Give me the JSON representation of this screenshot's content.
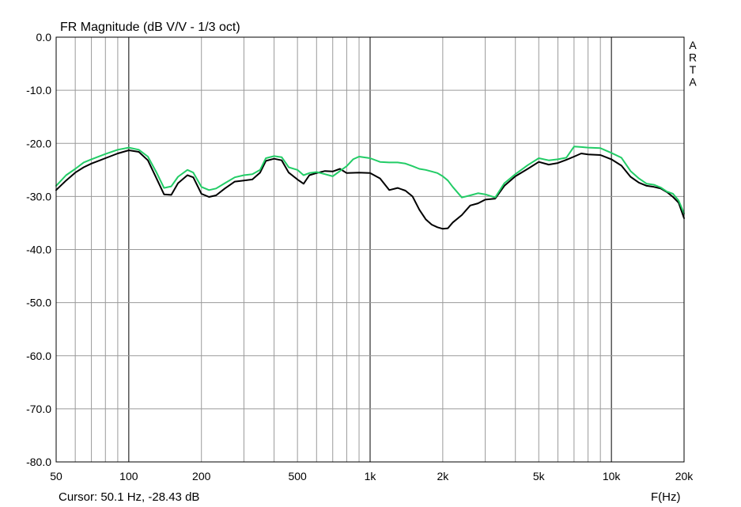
{
  "chart_data": {
    "type": "line",
    "title": "FR Magnitude (dB V/V - 1/3 oct)",
    "side_label": [
      "A",
      "R",
      "T",
      "A"
    ],
    "xlabel": "F(Hz)",
    "ylabel": "",
    "x_scale": "log",
    "xlim": [
      50,
      20000
    ],
    "ylim": [
      -80,
      0
    ],
    "grid": true,
    "x_ticks": [
      {
        "value": 50,
        "label": "50"
      },
      {
        "value": 100,
        "label": "100"
      },
      {
        "value": 200,
        "label": "200"
      },
      {
        "value": 500,
        "label": "500"
      },
      {
        "value": 1000,
        "label": "1k"
      },
      {
        "value": 2000,
        "label": "2k"
      },
      {
        "value": 5000,
        "label": "5k"
      },
      {
        "value": 10000,
        "label": "10k"
      },
      {
        "value": 20000,
        "label": "20k"
      }
    ],
    "y_ticks": [
      {
        "value": 0,
        "label": "0.0"
      },
      {
        "value": -10,
        "label": "-10.0"
      },
      {
        "value": -20,
        "label": "-20.0"
      },
      {
        "value": -30,
        "label": "-30.0"
      },
      {
        "value": -40,
        "label": "-40.0"
      },
      {
        "value": -50,
        "label": "-50.0"
      },
      {
        "value": -60,
        "label": "-60.0"
      },
      {
        "value": -70,
        "label": "-70.0"
      },
      {
        "value": -80,
        "label": "-80.0"
      }
    ],
    "cursor_text": "Cursor: 50.1 Hz, -28.43 dB",
    "series": [
      {
        "color": "#000000",
        "points": [
          [
            50,
            -28.8
          ],
          [
            55,
            -27
          ],
          [
            60,
            -25.5
          ],
          [
            65,
            -24.5
          ],
          [
            70,
            -23.8
          ],
          [
            80,
            -22.8
          ],
          [
            90,
            -21.9
          ],
          [
            100,
            -21.3
          ],
          [
            110,
            -21.6
          ],
          [
            120,
            -23.2
          ],
          [
            130,
            -26.5
          ],
          [
            140,
            -29.6
          ],
          [
            150,
            -29.7
          ],
          [
            160,
            -27.5
          ],
          [
            175,
            -26
          ],
          [
            185,
            -26.4
          ],
          [
            200,
            -29.5
          ],
          [
            215,
            -30.1
          ],
          [
            230,
            -29.8
          ],
          [
            250,
            -28.5
          ],
          [
            275,
            -27.2
          ],
          [
            300,
            -27
          ],
          [
            325,
            -26.8
          ],
          [
            350,
            -25.5
          ],
          [
            370,
            -23.3
          ],
          [
            400,
            -22.9
          ],
          [
            430,
            -23.2
          ],
          [
            460,
            -25.5
          ],
          [
            500,
            -26.8
          ],
          [
            530,
            -27.6
          ],
          [
            560,
            -26
          ],
          [
            600,
            -25.6
          ],
          [
            650,
            -25.2
          ],
          [
            700,
            -25.3
          ],
          [
            750,
            -24.8
          ],
          [
            800,
            -25.6
          ],
          [
            900,
            -25.5
          ],
          [
            1000,
            -25.6
          ],
          [
            1100,
            -26.6
          ],
          [
            1200,
            -28.8
          ],
          [
            1300,
            -28.4
          ],
          [
            1400,
            -28.9
          ],
          [
            1500,
            -30
          ],
          [
            1600,
            -32.5
          ],
          [
            1700,
            -34.3
          ],
          [
            1800,
            -35.3
          ],
          [
            1900,
            -35.8
          ],
          [
            2000,
            -36.1
          ],
          [
            2100,
            -36
          ],
          [
            2200,
            -34.9
          ],
          [
            2400,
            -33.5
          ],
          [
            2600,
            -31.7
          ],
          [
            2800,
            -31.3
          ],
          [
            3000,
            -30.6
          ],
          [
            3300,
            -30.4
          ],
          [
            3600,
            -28
          ],
          [
            4000,
            -26.2
          ],
          [
            4500,
            -24.8
          ],
          [
            5000,
            -23.5
          ],
          [
            5500,
            -24
          ],
          [
            6000,
            -23.7
          ],
          [
            6500,
            -23.1
          ],
          [
            7000,
            -22.5
          ],
          [
            7500,
            -21.9
          ],
          [
            8000,
            -22.1
          ],
          [
            9000,
            -22.2
          ],
          [
            10000,
            -23
          ],
          [
            11000,
            -24.2
          ],
          [
            12000,
            -26.3
          ],
          [
            13000,
            -27.4
          ],
          [
            14000,
            -28
          ],
          [
            15000,
            -28.2
          ],
          [
            16000,
            -28.5
          ],
          [
            17000,
            -29.2
          ],
          [
            18000,
            -30.1
          ],
          [
            19000,
            -31.2
          ],
          [
            20000,
            -34.1
          ]
        ]
      },
      {
        "color": "#22cc66",
        "points": [
          [
            50,
            -28
          ],
          [
            55,
            -26
          ],
          [
            60,
            -24.8
          ],
          [
            65,
            -23.6
          ],
          [
            70,
            -23
          ],
          [
            80,
            -22
          ],
          [
            90,
            -21.2
          ],
          [
            100,
            -20.8
          ],
          [
            110,
            -21.2
          ],
          [
            120,
            -22.5
          ],
          [
            130,
            -25.4
          ],
          [
            140,
            -28.4
          ],
          [
            150,
            -28.1
          ],
          [
            160,
            -26.3
          ],
          [
            175,
            -25
          ],
          [
            185,
            -25.5
          ],
          [
            200,
            -28.2
          ],
          [
            215,
            -28.8
          ],
          [
            230,
            -28.5
          ],
          [
            250,
            -27.5
          ],
          [
            275,
            -26.4
          ],
          [
            300,
            -26
          ],
          [
            325,
            -25.8
          ],
          [
            350,
            -25
          ],
          [
            370,
            -22.8
          ],
          [
            400,
            -22.4
          ],
          [
            430,
            -22.6
          ],
          [
            460,
            -24.5
          ],
          [
            500,
            -25
          ],
          [
            530,
            -26
          ],
          [
            560,
            -25.6
          ],
          [
            600,
            -25.4
          ],
          [
            650,
            -25.8
          ],
          [
            700,
            -26.2
          ],
          [
            750,
            -25.2
          ],
          [
            800,
            -24.3
          ],
          [
            850,
            -23
          ],
          [
            900,
            -22.5
          ],
          [
            1000,
            -22.8
          ],
          [
            1100,
            -23.5
          ],
          [
            1200,
            -23.6
          ],
          [
            1300,
            -23.6
          ],
          [
            1400,
            -23.8
          ],
          [
            1500,
            -24.3
          ],
          [
            1600,
            -24.8
          ],
          [
            1700,
            -25
          ],
          [
            1800,
            -25.3
          ],
          [
            1900,
            -25.6
          ],
          [
            2000,
            -26.2
          ],
          [
            2100,
            -27
          ],
          [
            2200,
            -28.2
          ],
          [
            2400,
            -30.2
          ],
          [
            2600,
            -29.8
          ],
          [
            2800,
            -29.4
          ],
          [
            3000,
            -29.6
          ],
          [
            3300,
            -30.2
          ],
          [
            3600,
            -27.5
          ],
          [
            4000,
            -25.8
          ],
          [
            4500,
            -24.1
          ],
          [
            5000,
            -22.8
          ],
          [
            5500,
            -23.2
          ],
          [
            6000,
            -23
          ],
          [
            6500,
            -22.7
          ],
          [
            7000,
            -20.6
          ],
          [
            7500,
            -20.7
          ],
          [
            8000,
            -20.8
          ],
          [
            9000,
            -20.9
          ],
          [
            10000,
            -21.8
          ],
          [
            11000,
            -22.7
          ],
          [
            12000,
            -25.2
          ],
          [
            13000,
            -26.6
          ],
          [
            14000,
            -27.6
          ],
          [
            15000,
            -27.8
          ],
          [
            16000,
            -28.3
          ],
          [
            17000,
            -29.1
          ],
          [
            18000,
            -29.5
          ],
          [
            19000,
            -30.8
          ],
          [
            20000,
            -33.2
          ]
        ]
      }
    ]
  }
}
